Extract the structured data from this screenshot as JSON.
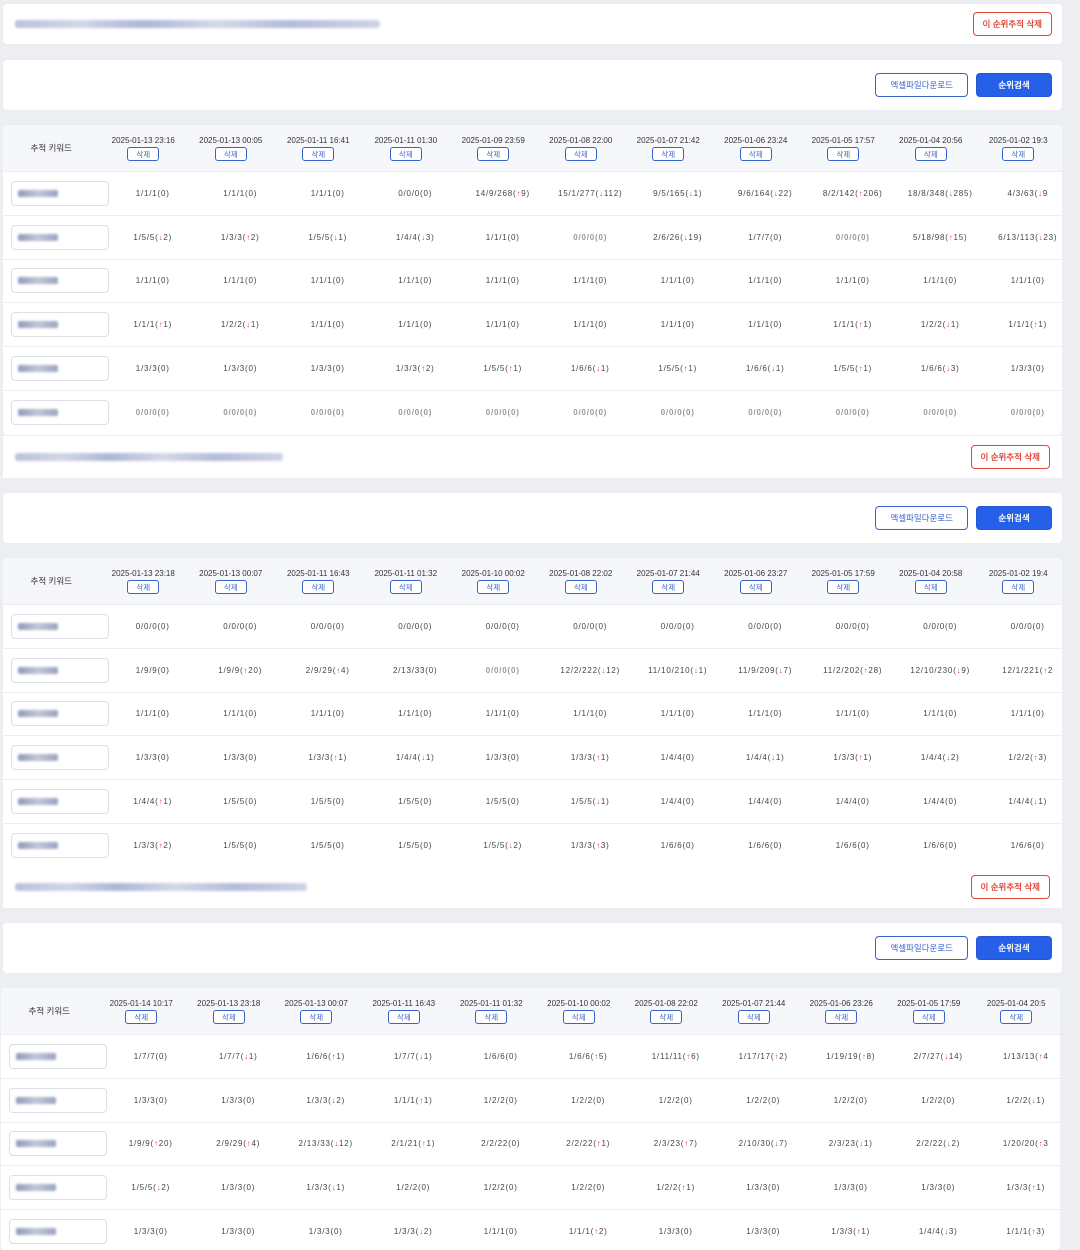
{
  "labels": {
    "delete_tracking": "이 순위추적 삭제",
    "excel_download": "엑셀파일다운로드",
    "rank_search": "순위검색",
    "keyword_header": "추적 키워드",
    "delete": "삭제"
  },
  "colors": {
    "accent": "#2660e8",
    "danger": "#e0493a"
  },
  "tables": [
    {
      "dates": [
        "2025-01-13 23:16",
        "2025-01-13 00:05",
        "2025-01-11 16:41",
        "2025-01-11 01:30",
        "2025-01-09 23:59",
        "2025-01-08 22:00",
        "2025-01-07 21:42",
        "2025-01-06 23:24",
        "2025-01-05 17:57",
        "2025-01-04 20:56",
        "2025-01-02 19:3"
      ],
      "rows": [
        [
          "1/1/1(0)",
          "1/1/1(0)",
          "1/1/1(0)",
          "0/0/0(0)",
          "14/9/268(↑9)",
          "15/1/277(↓112)",
          "9/5/165(↓1)",
          "9/6/164(↓22)",
          "8/2/142(↑206)",
          "18/8/348(↓285)",
          "4/3/63(↓9"
        ],
        [
          "1/5/5(↓2)",
          "1/3/3(↑2)",
          "1/5/5(↓1)",
          "1/4/4(↓3)",
          "1/1/1(0)",
          "0/0/0(0)",
          "2/6/26(↓19)",
          "1/7/7(0)",
          "0/0/0(0)",
          "5/18/98(↑15)",
          "6/13/113(↓23)"
        ],
        [
          "1/1/1(0)",
          "1/1/1(0)",
          "1/1/1(0)",
          "1/1/1(0)",
          "1/1/1(0)",
          "1/1/1(0)",
          "1/1/1(0)",
          "1/1/1(0)",
          "1/1/1(0)",
          "1/1/1(0)",
          "1/1/1(0)"
        ],
        [
          "1/1/1(↑1)",
          "1/2/2(↓1)",
          "1/1/1(0)",
          "1/1/1(0)",
          "1/1/1(0)",
          "1/1/1(0)",
          "1/1/1(0)",
          "1/1/1(0)",
          "1/1/1(↑1)",
          "1/2/2(↓1)",
          "1/1/1(↑1)"
        ],
        [
          "1/3/3(0)",
          "1/3/3(0)",
          "1/3/3(0)",
          "1/3/3(↑2)",
          "1/5/5(↑1)",
          "1/6/6(↓1)",
          "1/5/5(↑1)",
          "1/6/6(↓1)",
          "1/5/5(↑1)",
          "1/6/6(↓3)",
          "1/3/3(0)"
        ],
        [
          "0/0/0(0)",
          "0/0/0(0)",
          "0/0/0(0)",
          "0/0/0(0)",
          "0/0/0(0)",
          "0/0/0(0)",
          "0/0/0(0)",
          "0/0/0(0)",
          "0/0/0(0)",
          "0/0/0(0)",
          "0/0/0(0)"
        ]
      ]
    },
    {
      "dates": [
        "2025-01-13 23:18",
        "2025-01-13 00:07",
        "2025-01-11 16:43",
        "2025-01-11 01:32",
        "2025-01-10 00:02",
        "2025-01-08 22:02",
        "2025-01-07 21:44",
        "2025-01-06 23:27",
        "2025-01-05 17:59",
        "2025-01-04 20:58",
        "2025-01-02 19:4"
      ],
      "rows": [
        [
          "0/0/0(0)",
          "0/0/0(0)",
          "0/0/0(0)",
          "0/0/0(0)",
          "0/0/0(0)",
          "0/0/0(0)",
          "0/0/0(0)",
          "0/0/0(0)",
          "0/0/0(0)",
          "0/0/0(0)",
          "0/0/0(0)"
        ],
        [
          "1/9/9(0)",
          "1/9/9(↑20)",
          "2/9/29(↑4)",
          "2/13/33(0)",
          "0/0/0(0)",
          "12/2/222(↓12)",
          "11/10/210(↓1)",
          "11/9/209(↓7)",
          "11/2/202(↑28)",
          "12/10/230(↓9)",
          "12/1/221(↑2"
        ],
        [
          "1/1/1(0)",
          "1/1/1(0)",
          "1/1/1(0)",
          "1/1/1(0)",
          "1/1/1(0)",
          "1/1/1(0)",
          "1/1/1(0)",
          "1/1/1(0)",
          "1/1/1(0)",
          "1/1/1(0)",
          "1/1/1(0)"
        ],
        [
          "1/3/3(0)",
          "1/3/3(0)",
          "1/3/3(↑1)",
          "1/4/4(↓1)",
          "1/3/3(0)",
          "1/3/3(↑1)",
          "1/4/4(0)",
          "1/4/4(↓1)",
          "1/3/3(↑1)",
          "1/4/4(↓2)",
          "1/2/2(↑3)"
        ],
        [
          "1/4/4(↑1)",
          "1/5/5(0)",
          "1/5/5(0)",
          "1/5/5(0)",
          "1/5/5(0)",
          "1/5/5(↓1)",
          "1/4/4(0)",
          "1/4/4(0)",
          "1/4/4(0)",
          "1/4/4(0)",
          "1/4/4(↓1)"
        ],
        [
          "1/3/3(↑2)",
          "1/5/5(0)",
          "1/5/5(0)",
          "1/5/5(0)",
          "1/5/5(↓2)",
          "1/3/3(↑3)",
          "1/6/6(0)",
          "1/6/6(0)",
          "1/6/6(0)",
          "1/6/6(0)",
          "1/6/6(0)"
        ]
      ]
    },
    {
      "dates": [
        "2025-01-14 10:17",
        "2025-01-13 23:18",
        "2025-01-13 00:07",
        "2025-01-11 16:43",
        "2025-01-11 01:32",
        "2025-01-10 00:02",
        "2025-01-08 22:02",
        "2025-01-07 21:44",
        "2025-01-06 23:26",
        "2025-01-05 17:59",
        "2025-01-04 20:5"
      ],
      "rows": [
        [
          "1/7/7(0)",
          "1/7/7(↓1)",
          "1/6/6(↑1)",
          "1/7/7(↓1)",
          "1/6/6(0)",
          "1/6/6(↑5)",
          "1/11/11(↑6)",
          "1/17/17(↑2)",
          "1/19/19(↑8)",
          "2/7/27(↓14)",
          "1/13/13(↑4"
        ],
        [
          "1/3/3(0)",
          "1/3/3(0)",
          "1/3/3(↓2)",
          "1/1/1(↑1)",
          "1/2/2(0)",
          "1/2/2(0)",
          "1/2/2(0)",
          "1/2/2(0)",
          "1/2/2(0)",
          "1/2/2(0)",
          "1/2/2(↓1)"
        ],
        [
          "1/9/9(↑20)",
          "2/9/29(↑4)",
          "2/13/33(↓12)",
          "2/1/21(↑1)",
          "2/2/22(0)",
          "2/2/22(↑1)",
          "2/3/23(↑7)",
          "2/10/30(↓7)",
          "2/3/23(↓1)",
          "2/2/22(↓2)",
          "1/20/20(↑3"
        ],
        [
          "1/5/5(↓2)",
          "1/3/3(0)",
          "1/3/3(↓1)",
          "1/2/2(0)",
          "1/2/2(0)",
          "1/2/2(0)",
          "1/2/2(↑1)",
          "1/3/3(0)",
          "1/3/3(0)",
          "1/3/3(0)",
          "1/3/3(↑1)"
        ],
        [
          "1/3/3(0)",
          "1/3/3(0)",
          "1/3/3(0)",
          "1/3/3(↓2)",
          "1/1/1(0)",
          "1/1/1(↑2)",
          "1/3/3(0)",
          "1/3/3(0)",
          "1/3/3(↑1)",
          "1/4/4(↓3)",
          "1/1/1(↑3)"
        ]
      ]
    }
  ]
}
